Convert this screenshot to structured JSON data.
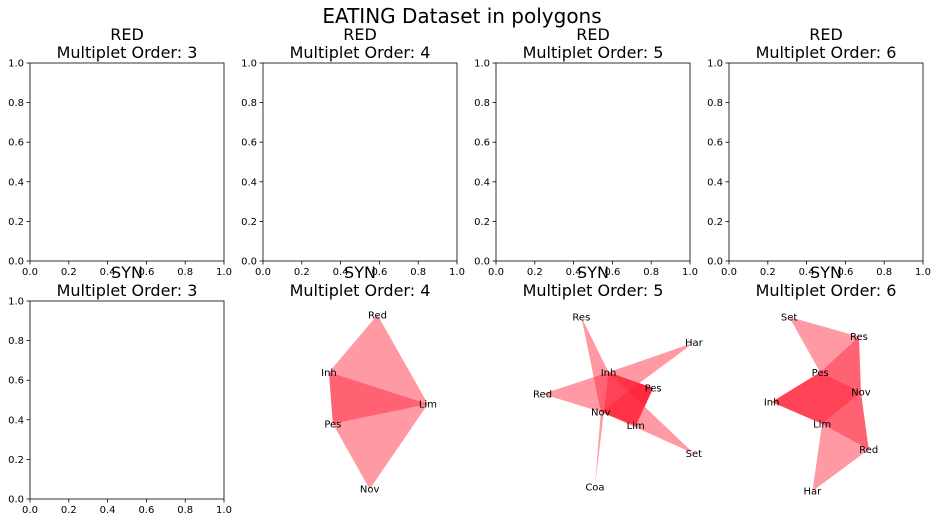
{
  "suptitle": "EATING Dataset in polygons",
  "colors": {
    "polygon_fill": "#ff1f35",
    "polygon_alpha": 0.45
  },
  "chart_data": [
    {
      "type": "polygon",
      "row": 0,
      "col": 0,
      "title_line1": "RED",
      "title_line2": "Multiplet Order: 3",
      "axes_visible": true,
      "xticks": [
        "0.0",
        "0.2",
        "0.4",
        "0.6",
        "0.8",
        "1.0"
      ],
      "yticks": [
        "0.0",
        "0.2",
        "0.4",
        "0.6",
        "0.8",
        "1.0"
      ],
      "xlim": [
        0,
        1
      ],
      "ylim": [
        0,
        1
      ],
      "polygons": []
    },
    {
      "type": "polygon",
      "row": 0,
      "col": 1,
      "title_line1": "RED",
      "title_line2": "Multiplet Order: 4",
      "axes_visible": true,
      "xticks": [
        "0.0",
        "0.2",
        "0.4",
        "0.6",
        "0.8",
        "1.0"
      ],
      "yticks": [
        "0.0",
        "0.2",
        "0.4",
        "0.6",
        "0.8",
        "1.0"
      ],
      "xlim": [
        0,
        1
      ],
      "ylim": [
        0,
        1
      ],
      "polygons": []
    },
    {
      "type": "polygon",
      "row": 0,
      "col": 2,
      "title_line1": "RED",
      "title_line2": "Multiplet Order: 5",
      "axes_visible": true,
      "xticks": [
        "0.0",
        "0.2",
        "0.4",
        "0.6",
        "0.8",
        "1.0"
      ],
      "yticks": [
        "0.0",
        "0.2",
        "0.4",
        "0.6",
        "0.8",
        "1.0"
      ],
      "xlim": [
        0,
        1
      ],
      "ylim": [
        0,
        1
      ],
      "polygons": []
    },
    {
      "type": "polygon",
      "row": 0,
      "col": 3,
      "title_line1": "RED",
      "title_line2": "Multiplet Order: 6",
      "axes_visible": true,
      "xticks": [
        "0.0",
        "0.2",
        "0.4",
        "0.6",
        "0.8",
        "1.0"
      ],
      "yticks": [
        "0.0",
        "0.2",
        "0.4",
        "0.6",
        "0.8",
        "1.0"
      ],
      "xlim": [
        0,
        1
      ],
      "ylim": [
        0,
        1
      ],
      "polygons": []
    },
    {
      "type": "polygon",
      "row": 1,
      "col": 0,
      "title_line1": "SYN",
      "title_line2": "Multiplet Order: 3",
      "axes_visible": true,
      "xticks": [
        "0.0",
        "0.2",
        "0.4",
        "0.6",
        "0.8",
        "1.0"
      ],
      "yticks": [
        "0.0",
        "0.2",
        "0.4",
        "0.6",
        "0.8",
        "1.0"
      ],
      "xlim": [
        0,
        1
      ],
      "ylim": [
        0,
        1
      ],
      "polygons": []
    },
    {
      "type": "polygon",
      "row": 1,
      "col": 1,
      "title_line1": "SYN",
      "title_line2": "Multiplet Order: 4",
      "axes_visible": false,
      "nodes": [
        {
          "label": "Red",
          "x": 0.59,
          "y": 0.93
        },
        {
          "label": "Inh",
          "x": 0.34,
          "y": 0.64
        },
        {
          "label": "Lim",
          "x": 0.85,
          "y": 0.48
        },
        {
          "label": "Pes",
          "x": 0.36,
          "y": 0.38
        },
        {
          "label": "Nov",
          "x": 0.55,
          "y": 0.05
        }
      ],
      "polygons": [
        [
          "Red",
          "Inh",
          "Pes",
          "Lim"
        ],
        [
          "Inh",
          "Pes",
          "Nov",
          "Lim"
        ]
      ]
    },
    {
      "type": "polygon",
      "row": 1,
      "col": 2,
      "title_line1": "SYN",
      "title_line2": "Multiplet Order: 5",
      "axes_visible": false,
      "nodes": [
        {
          "label": "Res",
          "x": 0.44,
          "y": 0.92
        },
        {
          "label": "Har",
          "x": 1.02,
          "y": 0.79
        },
        {
          "label": "Inh",
          "x": 0.58,
          "y": 0.64
        },
        {
          "label": "Pes",
          "x": 0.81,
          "y": 0.56
        },
        {
          "label": "Red",
          "x": 0.24,
          "y": 0.53
        },
        {
          "label": "Nov",
          "x": 0.54,
          "y": 0.44
        },
        {
          "label": "Lim",
          "x": 0.72,
          "y": 0.37
        },
        {
          "label": "Set",
          "x": 1.02,
          "y": 0.23
        },
        {
          "label": "Coa",
          "x": 0.51,
          "y": 0.06
        }
      ],
      "polygons": [
        [
          "Res",
          "Inh",
          "Pes",
          "Lim",
          "Nov"
        ],
        [
          "Har",
          "Inh",
          "Pes",
          "Lim",
          "Nov"
        ],
        [
          "Red",
          "Inh",
          "Pes",
          "Lim",
          "Nov"
        ],
        [
          "Set",
          "Inh",
          "Pes",
          "Lim",
          "Nov"
        ],
        [
          "Coa",
          "Inh",
          "Pes",
          "Lim",
          "Nov"
        ]
      ]
    },
    {
      "type": "polygon",
      "row": 1,
      "col": 3,
      "title_line1": "SYN",
      "title_line2": "Multiplet Order: 6",
      "axes_visible": false,
      "nodes": [
        {
          "label": "Set",
          "x": 0.31,
          "y": 0.92
        },
        {
          "label": "Res",
          "x": 0.67,
          "y": 0.82
        },
        {
          "label": "Pes",
          "x": 0.47,
          "y": 0.64
        },
        {
          "label": "Nov",
          "x": 0.68,
          "y": 0.54
        },
        {
          "label": "Inh",
          "x": 0.22,
          "y": 0.49
        },
        {
          "label": "Lim",
          "x": 0.48,
          "y": 0.38
        },
        {
          "label": "Red",
          "x": 0.72,
          "y": 0.25
        },
        {
          "label": "Har",
          "x": 0.43,
          "y": 0.04
        }
      ],
      "polygons": [
        [
          "Set",
          "Res",
          "Nov",
          "Lim",
          "Inh",
          "Pes"
        ],
        [
          "Res",
          "Nov",
          "Red",
          "Lim",
          "Inh",
          "Pes"
        ],
        [
          "Har",
          "Red",
          "Nov",
          "Pes",
          "Inh",
          "Lim"
        ]
      ]
    }
  ]
}
